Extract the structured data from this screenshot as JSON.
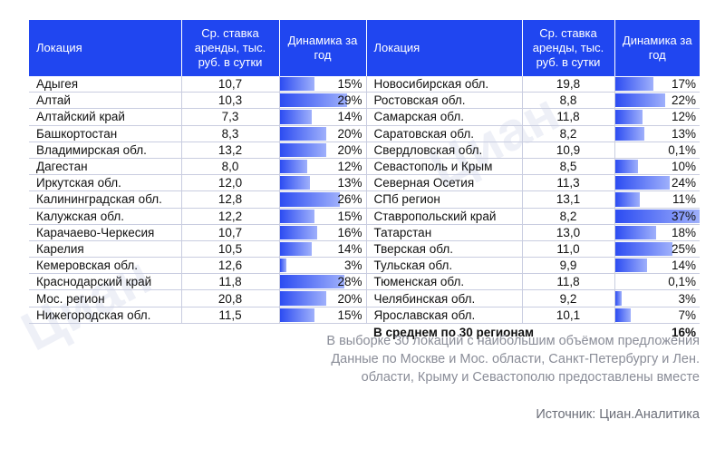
{
  "headers": {
    "location": "Локация",
    "rate": "Ср. ставка аренды, тыс. руб. в сутки",
    "dynamics": "Динамика за год"
  },
  "left_rows": [
    {
      "location": "Адыгея",
      "rate": "10,7",
      "dyn": "15%",
      "dyn_value": 15
    },
    {
      "location": "Алтай",
      "rate": "10,3",
      "dyn": "29%",
      "dyn_value": 29
    },
    {
      "location": "Алтайский край",
      "rate": "7,3",
      "dyn": "14%",
      "dyn_value": 14
    },
    {
      "location": "Башкортостан",
      "rate": "8,3",
      "dyn": "20%",
      "dyn_value": 20
    },
    {
      "location": "Владимирская обл.",
      "rate": "13,2",
      "dyn": "20%",
      "dyn_value": 20
    },
    {
      "location": "Дагестан",
      "rate": "8,0",
      "dyn": "12%",
      "dyn_value": 12
    },
    {
      "location": "Иркутская обл.",
      "rate": "12,0",
      "dyn": "13%",
      "dyn_value": 13
    },
    {
      "location": "Калининградская обл.",
      "rate": "12,8",
      "dyn": "26%",
      "dyn_value": 26
    },
    {
      "location": "Калужская обл.",
      "rate": "12,2",
      "dyn": "15%",
      "dyn_value": 15
    },
    {
      "location": "Карачаево-Черкесия",
      "rate": "10,7",
      "dyn": "16%",
      "dyn_value": 16
    },
    {
      "location": "Карелия",
      "rate": "10,5",
      "dyn": "14%",
      "dyn_value": 14
    },
    {
      "location": "Кемеровская обл.",
      "rate": "12,6",
      "dyn": "3%",
      "dyn_value": 3
    },
    {
      "location": "Краснодарский край",
      "rate": "11,8",
      "dyn": "28%",
      "dyn_value": 28
    },
    {
      "location": "Мос. регион",
      "rate": "20,8",
      "dyn": "20%",
      "dyn_value": 20
    },
    {
      "location": "Нижегородская обл.",
      "rate": "11,5",
      "dyn": "15%",
      "dyn_value": 15
    }
  ],
  "right_rows": [
    {
      "location": "Новосибирская обл.",
      "rate": "19,8",
      "dyn": "17%",
      "dyn_value": 17
    },
    {
      "location": "Ростовская обл.",
      "rate": "8,8",
      "dyn": "22%",
      "dyn_value": 22
    },
    {
      "location": "Самарская обл.",
      "rate": "11,8",
      "dyn": "12%",
      "dyn_value": 12
    },
    {
      "location": "Саратовская обл.",
      "rate": "8,2",
      "dyn": "13%",
      "dyn_value": 13
    },
    {
      "location": "Свердловская обл.",
      "rate": "10,9",
      "dyn": "0,1%",
      "dyn_value": 0.1
    },
    {
      "location": "Севастополь и Крым",
      "rate": "8,5",
      "dyn": "10%",
      "dyn_value": 10
    },
    {
      "location": "Северная Осетия",
      "rate": "11,3",
      "dyn": "24%",
      "dyn_value": 24
    },
    {
      "location": "СПб регион",
      "rate": "13,1",
      "dyn": "11%",
      "dyn_value": 11
    },
    {
      "location": "Ставропольский край",
      "rate": "8,2",
      "dyn": "37%",
      "dyn_value": 37
    },
    {
      "location": "Татарстан",
      "rate": "13,0",
      "dyn": "18%",
      "dyn_value": 18
    },
    {
      "location": "Тверская обл.",
      "rate": "11,0",
      "dyn": "25%",
      "dyn_value": 25
    },
    {
      "location": "Тульская обл.",
      "rate": "9,9",
      "dyn": "14%",
      "dyn_value": 14
    },
    {
      "location": "Тюменская обл.",
      "rate": "11,8",
      "dyn": "0,1%",
      "dyn_value": 0.1
    },
    {
      "location": "Челябинская обл.",
      "rate": "9,2",
      "dyn": "3%",
      "dyn_value": 3
    },
    {
      "location": "Ярославская обл.",
      "rate": "10,1",
      "dyn": "7%",
      "dyn_value": 7
    }
  ],
  "average": {
    "label": "В среднем по 30 регионам",
    "value": "16%"
  },
  "notes": [
    "В выборке 30 локаций с наибольшим объёмом предложения",
    "Данные по Москве и Мос. области, Санкт-Петербургу и Лен.",
    "области, Крыму и Севастополю предоставлены вместе"
  ],
  "source": "Источник: Циан.Аналитика",
  "watermark": "Циан",
  "colors": {
    "header": "#2046f0",
    "bar_dark": "#2c4cf2",
    "bar_light": "#ffffff",
    "max_dynamics": 37
  }
}
